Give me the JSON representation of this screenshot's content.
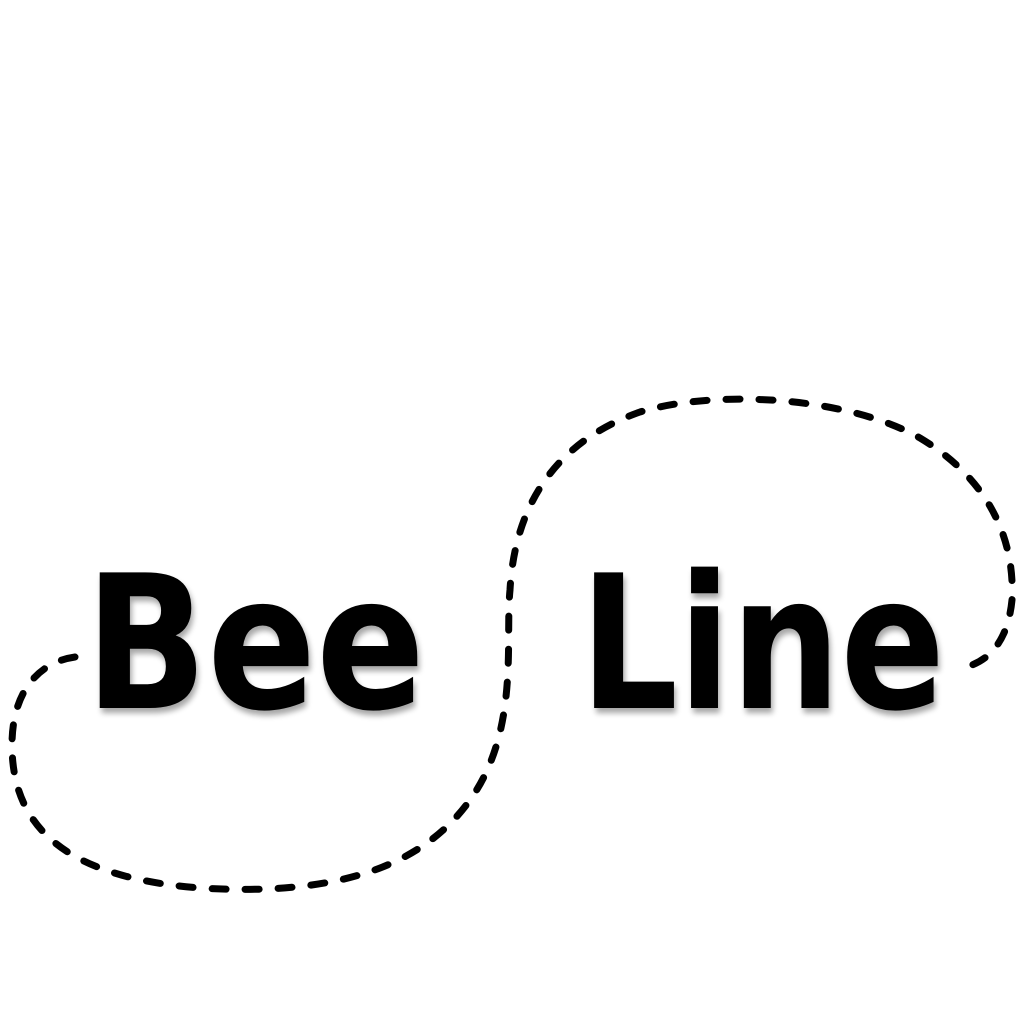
{
  "logo": {
    "word_left": "Bee",
    "word_right": "Line",
    "ink_color": "#000000",
    "background_color": "#ffffff"
  }
}
